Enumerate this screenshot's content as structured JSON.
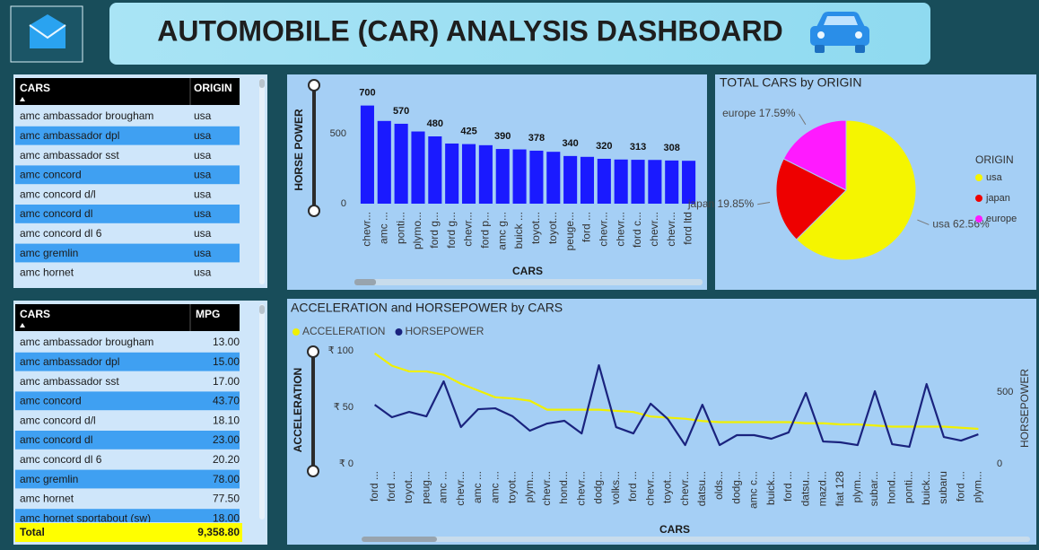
{
  "header": {
    "title": "AUTOMOBILE (CAR) ANALYSIS DASHBOARD"
  },
  "tables": [
    {
      "columns": [
        "CARS",
        "ORIGIN"
      ],
      "rows": [
        [
          "amc ambassador brougham",
          "usa"
        ],
        [
          "amc ambassador dpl",
          "usa"
        ],
        [
          "amc ambassador sst",
          "usa"
        ],
        [
          "amc concord",
          "usa"
        ],
        [
          "amc concord d/l",
          "usa"
        ],
        [
          "amc concord dl",
          "usa"
        ],
        [
          "amc concord dl 6",
          "usa"
        ],
        [
          "amc gremlin",
          "usa"
        ],
        [
          "amc hornet",
          "usa"
        ]
      ]
    },
    {
      "columns": [
        "CARS",
        "MPG"
      ],
      "rows": [
        [
          "amc ambassador brougham",
          "13.00"
        ],
        [
          "amc ambassador dpl",
          "15.00"
        ],
        [
          "amc ambassador sst",
          "17.00"
        ],
        [
          "amc concord",
          "43.70"
        ],
        [
          "amc concord d/l",
          "18.10"
        ],
        [
          "amc concord dl",
          "23.00"
        ],
        [
          "amc concord dl 6",
          "20.20"
        ],
        [
          "amc gremlin",
          "78.00"
        ],
        [
          "amc hornet",
          "77.50"
        ],
        [
          "amc hornet sportabout (sw)",
          "18.00"
        ]
      ],
      "total": [
        "Total",
        "9,358.80"
      ]
    }
  ],
  "chart_data": [
    {
      "type": "bar",
      "categories": [
        "chevr...",
        "amc ...",
        "ponti...",
        "plymo...",
        "ford g...",
        "ford g...",
        "chevr...",
        "ford p...",
        "amc g...",
        "buick ...",
        "toyot...",
        "toyot...",
        "peuge...",
        "ford ...",
        "chevr...",
        "chevr...",
        "ford c...",
        "chevr...",
        "chevr...",
        "ford ltd"
      ],
      "values": [
        700,
        590,
        570,
        515,
        480,
        429,
        425,
        417,
        390,
        387,
        378,
        370,
        340,
        334,
        320,
        315,
        313,
        312,
        308,
        306
      ],
      "color": "#1a1aff",
      "ylim": [
        0,
        800
      ],
      "yticks": [
        0,
        500
      ],
      "grid": false,
      "x_label": "CARS",
      "y_label": "HORSE POWER"
    },
    {
      "type": "pie",
      "title": "TOTAL CARS by ORIGIN",
      "categories": [
        "usa",
        "japan",
        "europe"
      ],
      "values": [
        62.56,
        19.85,
        17.59
      ],
      "value_labels": [
        "usa 62.56%",
        "japan 19.85%",
        "europe 17.59%"
      ],
      "colors": [
        "#f5f500",
        "#ee0000",
        "#ff1aff"
      ],
      "legend_title": "ORIGIN",
      "legend": "right"
    },
    {
      "type": "line",
      "title": "ACCELERATION and HORSEPOWER by CARS",
      "categories": [
        "ford ...",
        "ford ...",
        "toyot...",
        "peug...",
        "amc ...",
        "chevr...",
        "amc ...",
        "amc ...",
        "toyot...",
        "plym...",
        "chevr...",
        "hond...",
        "chevr...",
        "dodg...",
        "volks...",
        "ford ...",
        "chevr...",
        "toyot...",
        "chevr...",
        "datsu...",
        "olds...",
        "dodg...",
        "amc c...",
        "buick...",
        "ford ...",
        "datsu...",
        "mazd...",
        "fiat 128",
        "plym...",
        "subar...",
        "hond...",
        "ponti...",
        "buick...",
        "subaru",
        "ford ...",
        "plym..."
      ],
      "series": [
        {
          "name": "ACCELERATION",
          "color": "#f0f000",
          "values": [
            98,
            87,
            82,
            82,
            79,
            71,
            65,
            59,
            58,
            56,
            48,
            48,
            48,
            48,
            47,
            46,
            42,
            41,
            40,
            38,
            37,
            37,
            37,
            37,
            37,
            36,
            36,
            35,
            35,
            34,
            33,
            33,
            33,
            33,
            32,
            31
          ]
        },
        {
          "name": "HORSEPOWER",
          "color": "#1a237e",
          "axis": "y2",
          "values": [
            412,
            325,
            362,
            331,
            575,
            256,
            381,
            387,
            331,
            231,
            281,
            300,
            212,
            687,
            256,
            212,
            419,
            312,
            131,
            412,
            131,
            200,
            200,
            175,
            219,
            494,
            156,
            150,
            131,
            506,
            137,
            119,
            556,
            187,
            162,
            206
          ]
        }
      ],
      "ylim": [
        0,
        105
      ],
      "yticks": [
        {
          "value": 0,
          "label": "₹ 0"
        },
        {
          "value": 50,
          "label": "₹ 50"
        },
        {
          "value": 100,
          "label": "₹ 100"
        }
      ],
      "y2lim": [
        0,
        825
      ],
      "y2ticks": [
        0,
        500
      ],
      "x_label": "CARS",
      "y_label": "ACCELERATION",
      "y2_label": "HORSEPOWER",
      "legend": "top-left",
      "grid": false
    }
  ]
}
